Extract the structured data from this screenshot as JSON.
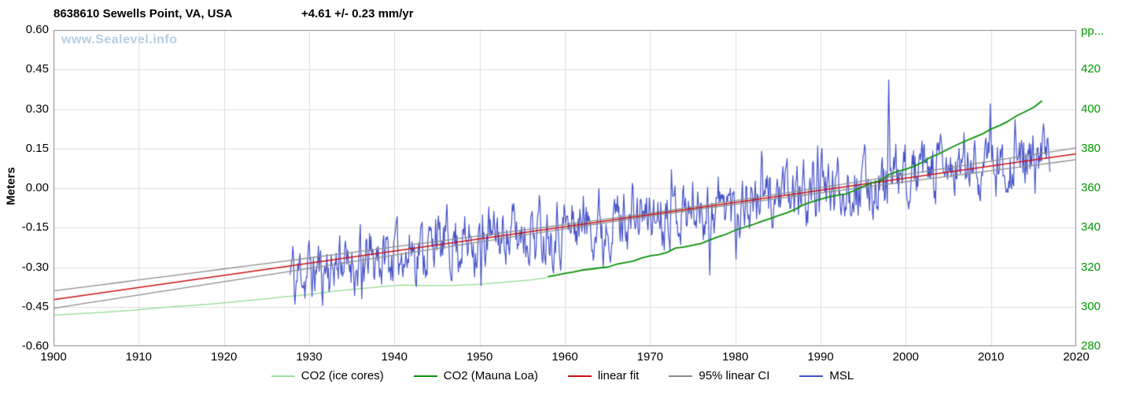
{
  "watermark": "www.Sealevel.info",
  "chart_data": {
    "type": "line",
    "title": "8638610 Sewells Point, VA, USA",
    "subtitle": "+4.61 +/- 0.23 mm/yr",
    "grid": true,
    "grid_color": "#dcdcdc",
    "border_color": "#8a8a8a",
    "legend_position": "bottom",
    "xlim": [
      1900,
      2020
    ],
    "x_ticks": {
      "values": [
        1900,
        1910,
        1920,
        1930,
        1940,
        1950,
        1960,
        1970,
        1980,
        1990,
        2000,
        2010,
        2020
      ],
      "labels": [
        "1900",
        "1910",
        "1920",
        "1930",
        "1940",
        "1950",
        "1960",
        "1970",
        "1980",
        "1990",
        "2000",
        "2010",
        "2020"
      ]
    },
    "left_axis": {
      "label": "Meters",
      "lim": [
        -0.6,
        0.6
      ],
      "tick_values": [
        0.6,
        0.45,
        0.3,
        0.15,
        0.0,
        -0.15,
        -0.3,
        -0.45,
        -0.6
      ],
      "tick_labels": [
        "0.60",
        "0.45",
        "0.30",
        "0.15",
        "0.00",
        "-0.15",
        "-0.30",
        "-0.45",
        "-0.60"
      ],
      "color": "#000000"
    },
    "right_axis": {
      "unit_label": "pp...",
      "lim": [
        280,
        440
      ],
      "tick_values": [
        420,
        400,
        380,
        360,
        340,
        320,
        300,
        280
      ],
      "tick_labels": [
        "420",
        "400",
        "380",
        "360",
        "340",
        "320",
        "300",
        "280"
      ],
      "color": "#009900"
    },
    "series": [
      {
        "role": "co2_ice",
        "name": "CO2 (ice cores)",
        "axis": "right",
        "color": "#9fe09f",
        "width": 1.5,
        "points": [
          [
            1900,
            295.7
          ],
          [
            1903,
            296.5
          ],
          [
            1906,
            297.2
          ],
          [
            1909,
            298.1
          ],
          [
            1912,
            299.3
          ],
          [
            1915,
            300.3
          ],
          [
            1918,
            301.2
          ],
          [
            1921,
            302.4
          ],
          [
            1924,
            303.6
          ],
          [
            1927,
            305.0
          ],
          [
            1930,
            306.2
          ],
          [
            1933,
            307.9
          ],
          [
            1936,
            309.2
          ],
          [
            1939,
            310.3
          ],
          [
            1941,
            310.9
          ],
          [
            1944,
            310.6
          ],
          [
            1947,
            310.7
          ],
          [
            1950,
            311.3
          ],
          [
            1953,
            312.4
          ],
          [
            1956,
            313.5
          ],
          [
            1958,
            314.7
          ]
        ]
      },
      {
        "role": "co2_maunaloa",
        "name": "CO2 (Mauna Loa)",
        "axis": "right",
        "color": "#089008",
        "width": 1.8,
        "points": [
          [
            1958,
            315.2
          ],
          [
            1959,
            316.0
          ],
          [
            1960,
            316.9
          ],
          [
            1961,
            317.6
          ],
          [
            1962,
            318.5
          ],
          [
            1963,
            319.0
          ],
          [
            1964,
            319.6
          ],
          [
            1965,
            320.0
          ],
          [
            1966,
            321.4
          ],
          [
            1967,
            322.2
          ],
          [
            1968,
            323.0
          ],
          [
            1969,
            324.6
          ],
          [
            1970,
            325.7
          ],
          [
            1971,
            326.3
          ],
          [
            1972,
            327.5
          ],
          [
            1973,
            329.7
          ],
          [
            1974,
            330.2
          ],
          [
            1975,
            331.1
          ],
          [
            1976,
            332.0
          ],
          [
            1977,
            333.8
          ],
          [
            1978,
            335.4
          ],
          [
            1979,
            336.8
          ],
          [
            1980,
            338.7
          ],
          [
            1981,
            340.1
          ],
          [
            1982,
            341.4
          ],
          [
            1983,
            343.0
          ],
          [
            1984,
            344.4
          ],
          [
            1985,
            346.0
          ],
          [
            1986,
            347.4
          ],
          [
            1987,
            349.2
          ],
          [
            1988,
            351.6
          ],
          [
            1989,
            353.1
          ],
          [
            1990,
            354.4
          ],
          [
            1991,
            355.6
          ],
          [
            1992,
            356.4
          ],
          [
            1993,
            357.1
          ],
          [
            1994,
            358.8
          ],
          [
            1995,
            360.8
          ],
          [
            1996,
            362.6
          ],
          [
            1997,
            363.7
          ],
          [
            1998,
            366.7
          ],
          [
            1999,
            368.4
          ],
          [
            2000,
            369.5
          ],
          [
            2001,
            371.1
          ],
          [
            2002,
            373.2
          ],
          [
            2003,
            375.8
          ],
          [
            2004,
            377.5
          ],
          [
            2005,
            379.8
          ],
          [
            2006,
            381.9
          ],
          [
            2007,
            383.8
          ],
          [
            2008,
            385.6
          ],
          [
            2009,
            387.4
          ],
          [
            2010,
            389.9
          ],
          [
            2011,
            391.6
          ],
          [
            2012,
            393.8
          ],
          [
            2013,
            396.5
          ],
          [
            2014,
            398.6
          ],
          [
            2015,
            400.8
          ],
          [
            2016,
            404.2
          ]
        ]
      },
      {
        "role": "fit",
        "name": "linear fit",
        "axis": "left",
        "color": "#cc1010",
        "width": 1.6,
        "points": [
          [
            1900,
            -0.423
          ],
          [
            2020,
            0.13
          ]
        ],
        "trend_mm_per_yr": 4.61,
        "trend_ci_mm_per_yr": 0.23
      },
      {
        "role": "ci",
        "name": "95% linear CI",
        "axis": "left",
        "color": "#8c8c8c",
        "width": 1.3,
        "ci": {
          "pivot_year": 1972,
          "min_half_width_m": 0.006,
          "growth_per_year": 0.00045
        }
      },
      {
        "role": "msl",
        "name": "MSL",
        "axis": "left",
        "color": "#4553c9",
        "width": 1.2,
        "monthly": {
          "start": 1927.75,
          "end": 2016.92,
          "seed": 11,
          "ar_coeff": 0.55,
          "noise_amp_m": 0.085,
          "seasonal_amp_m": 0.028,
          "seasonal_phase": 1.3,
          "trend_ref": "fit",
          "deviation": {
            "center": 1931,
            "width": 9,
            "amp_m": -0.032
          },
          "extremes": [
            [
              1928.3,
              -0.44
            ],
            [
              1933.6,
              -0.18
            ],
            [
              1936.2,
              -0.42
            ],
            [
              1944.8,
              -0.12
            ],
            [
              1950.2,
              -0.37
            ],
            [
              1956.1,
              -0.1
            ],
            [
              1962.2,
              -0.03
            ],
            [
              1964.5,
              -0.3
            ],
            [
              1972.5,
              0.07
            ],
            [
              1977.0,
              -0.33
            ],
            [
              1980.1,
              -0.27
            ],
            [
              1983.1,
              0.14
            ],
            [
              1989.7,
              0.16
            ],
            [
              1996.2,
              -0.12
            ],
            [
              1998.0,
              0.41
            ],
            [
              2000.3,
              -0.08
            ],
            [
              2003.7,
              0.17
            ],
            [
              2006.8,
              0.21
            ],
            [
              2009.9,
              0.32
            ],
            [
              2012.8,
              0.26
            ],
            [
              2015.2,
              -0.02
            ],
            [
              2016.7,
              0.19
            ]
          ]
        }
      }
    ]
  }
}
